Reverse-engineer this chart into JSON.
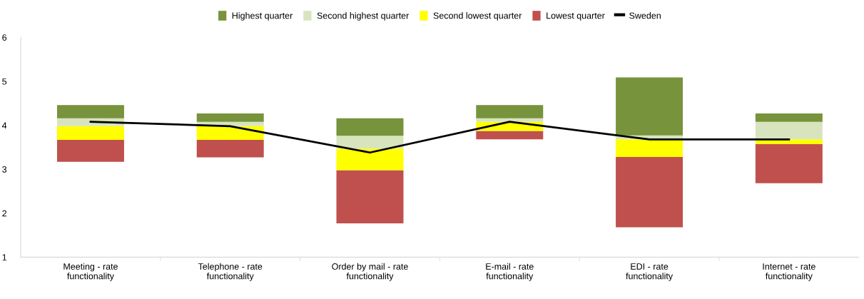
{
  "chart_data": {
    "type": "bar",
    "categories": [
      "Meeting - rate\nfunctionality",
      "Telephone - rate\nfunctionality",
      "Order by mail - rate\nfunctionality",
      "E-mail - rate\nfunctionality",
      "EDI - rate\nfunctionality",
      "Internet - rate\nfunctionality"
    ],
    "series": [
      {
        "name": "Lowest quarter",
        "color": "#c0504d",
        "base": [
          3.17,
          3.27,
          1.77,
          3.68,
          1.68,
          2.68
        ],
        "values": [
          0.5,
          0.4,
          1.21,
          0.19,
          1.6,
          0.89
        ]
      },
      {
        "name": "Second lowest quarter",
        "color": "#ffff00",
        "base": [
          3.67,
          3.67,
          2.98,
          3.87,
          3.28,
          3.57
        ],
        "values": [
          0.31,
          0.31,
          0.49,
          0.21,
          0.4,
          0.11
        ]
      },
      {
        "name": "Second highest quarter",
        "color": "#d7e4bd",
        "base": [
          3.98,
          3.98,
          3.47,
          4.08,
          3.68,
          3.68
        ],
        "values": [
          0.18,
          0.1,
          0.29,
          0.08,
          0.09,
          0.4
        ]
      },
      {
        "name": "Highest quarter",
        "color": "#77933c",
        "base": [
          4.16,
          4.08,
          3.76,
          4.16,
          3.77,
          4.08
        ],
        "values": [
          0.3,
          0.19,
          0.4,
          0.3,
          1.32,
          0.19
        ]
      },
      {
        "name": "Sweden",
        "type": "line",
        "color": "#000000",
        "values": [
          4.08,
          3.98,
          3.38,
          4.08,
          3.68,
          3.68
        ]
      }
    ],
    "ylim": [
      1,
      6
    ],
    "yticks": [
      1,
      2,
      3,
      4,
      5,
      6
    ],
    "legend": "top"
  }
}
